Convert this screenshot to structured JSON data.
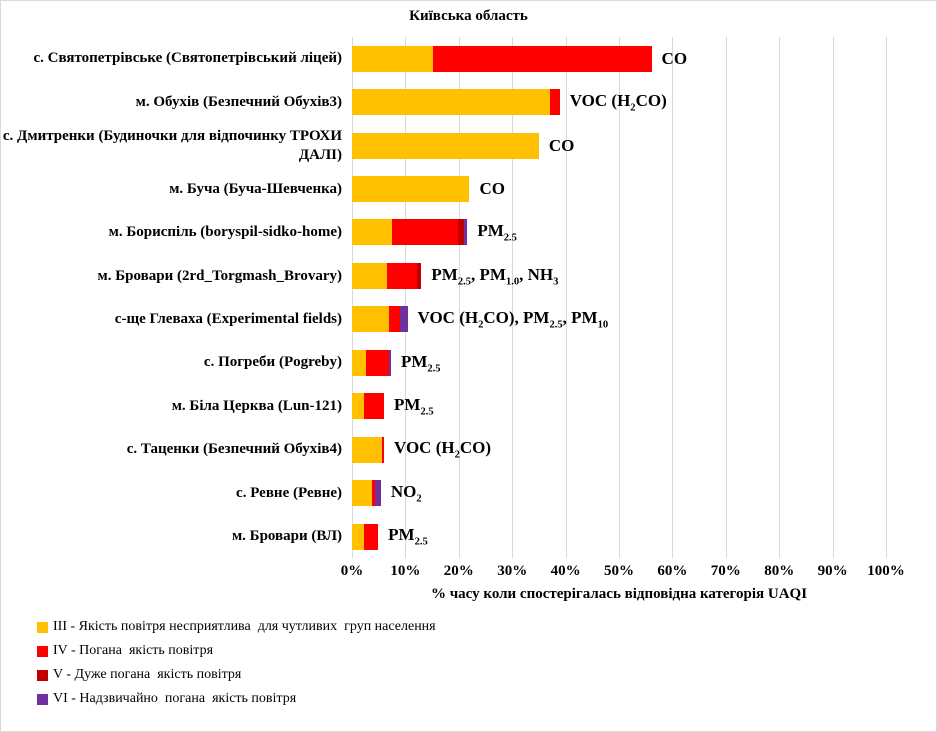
{
  "title": "Київська область",
  "chart_data": {
    "type": "bar",
    "orientation": "horizontal",
    "stacked": true,
    "title": "Київська область",
    "xlabel": "% часу коли спостерігалась відповідна категорія UAQI",
    "ylabel": "",
    "xlim": [
      0,
      100
    ],
    "grid": true,
    "gridline_color": "#d9d9d9",
    "x_ticks": [
      "0%",
      "10%",
      "20%",
      "30%",
      "40%",
      "50%",
      "60%",
      "70%",
      "80%",
      "90%",
      "100%"
    ],
    "categories": [
      "с. Святопетрівське (Святопетрівський ліцей)",
      "м. Обухів (Безпечний Обухів3)",
      "с. Дмитренки (Будиночки для відпочинку ТРОХИ ДАЛІ)",
      "м. Буча (Буча-Шевченка)",
      "м. Бориспіль (boryspil-sidko-home)",
      "м. Бровари (2rd_Torgmash_Brovary)",
      "с-ще Глеваха (Experimental fields)",
      "с. Погреби (Pogreby)",
      "м. Біла Церква (Lun-121)",
      "с. Таценки (Безпечний Обухів4)",
      "с. Ревне (Ревне)",
      "м. Бровари (ВЛ)"
    ],
    "series": [
      {
        "name": "III",
        "color": "#FFC000",
        "values": [
          15.2,
          37.0,
          35.0,
          22.0,
          7.5,
          6.5,
          7.0,
          2.6,
          2.2,
          5.6,
          3.8,
          2.3
        ]
      },
      {
        "name": "IV",
        "color": "#FF0000",
        "values": [
          40.9,
          1.9,
          0,
          0,
          12.4,
          5.6,
          1.9,
          4.3,
          3.8,
          0.4,
          0.6,
          2.6
        ]
      },
      {
        "name": "V",
        "color": "#C00000",
        "values": [
          0,
          0,
          0,
          0,
          1.1,
          0.9,
          0,
          0,
          0,
          0,
          0,
          0
        ]
      },
      {
        "name": "VI",
        "color": "#7030A0",
        "values": [
          0,
          0,
          0,
          0,
          0.6,
          0,
          1.5,
          0.4,
          0,
          0,
          1.0,
          0
        ]
      }
    ],
    "annotations": [
      "CO",
      "VOC (H_{2}CO)",
      "CO",
      "CO",
      "PM_{2.5}",
      "PM_{2.5}, PM_{1.0}, NH_{3}",
      "VOC (H_{2}CO), PM_{2.5}, PM_{10}",
      "PM_{2.5}",
      "PM_{2.5}",
      "VOC (H_{2}CO)",
      "NO_{2}",
      "PM_{2.5}"
    ],
    "legend": [
      {
        "key": "III",
        "color": "#FFC000",
        "label": "III - Якість повітря несприятлива  для чутливих  груп населення"
      },
      {
        "key": "IV",
        "color": "#FF0000",
        "label": "IV - Погана  якість повітря"
      },
      {
        "key": "V",
        "color": "#C00000",
        "label": "V - Дуже погана  якість повітря"
      },
      {
        "key": "VI",
        "color": "#7030A0",
        "label": "VI - Надзвичайно  погана  якість повітря"
      }
    ],
    "legend_position": "bottom-left"
  }
}
